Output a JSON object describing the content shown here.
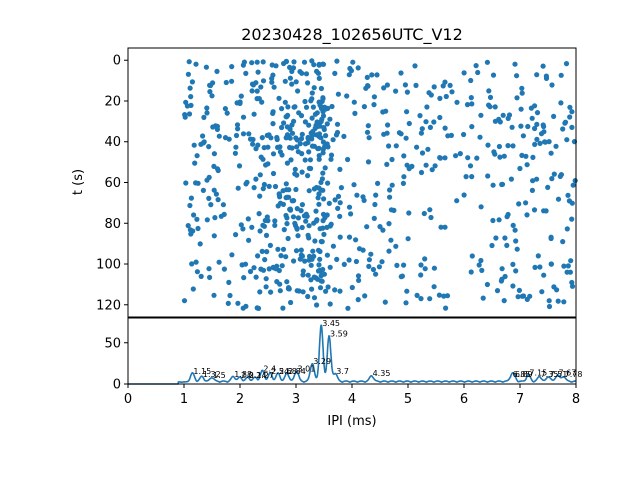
{
  "chart_data": [
    {
      "type": "scatter",
      "title": "20230428_102656UTC_V12",
      "xlabel": "",
      "ylabel": "t (s)",
      "xlim": [
        0,
        8
      ],
      "ylim": [
        126,
        -6
      ],
      "y_inverted": true,
      "yticks": [
        "0",
        "20",
        "40",
        "60",
        "80",
        "100",
        "120"
      ],
      "marker_color": "#1f77b4",
      "bands": [
        {
          "t": 2,
          "density": 0.7
        },
        {
          "t": 7,
          "density": 0.6
        },
        {
          "t": 12,
          "density": 0.7
        },
        {
          "t": 17,
          "density": 0.6
        },
        {
          "t": 22,
          "density": 0.9
        },
        {
          "t": 27,
          "density": 0.8
        },
        {
          "t": 32,
          "density": 1.0
        },
        {
          "t": 37,
          "density": 1.2
        },
        {
          "t": 42,
          "density": 0.9
        },
        {
          "t": 47,
          "density": 0.8
        },
        {
          "t": 52,
          "density": 0.5
        },
        {
          "t": 57,
          "density": 0.5
        },
        {
          "t": 62,
          "density": 0.8
        },
        {
          "t": 67,
          "density": 0.6
        },
        {
          "t": 72,
          "density": 0.6
        },
        {
          "t": 77,
          "density": 0.8
        },
        {
          "t": 82,
          "density": 0.7
        },
        {
          "t": 87,
          "density": 0.5
        },
        {
          "t": 92,
          "density": 0.4
        },
        {
          "t": 97,
          "density": 0.6
        },
        {
          "t": 102,
          "density": 1.0
        },
        {
          "t": 107,
          "density": 0.6
        },
        {
          "t": 112,
          "density": 0.6
        },
        {
          "t": 117,
          "density": 0.5
        },
        {
          "t": 120,
          "density": 0.3
        }
      ]
    },
    {
      "type": "line",
      "xlabel": "IPI (ms)",
      "ylabel": "",
      "xlim": [
        0,
        8
      ],
      "ylim": [
        0,
        80
      ],
      "xticks": [
        "0",
        "1",
        "2",
        "3",
        "4",
        "5",
        "6",
        "7",
        "8"
      ],
      "yticks": [
        "0",
        "50"
      ],
      "line_color": "#1f77b4",
      "peaks": [
        {
          "x": 1.15,
          "y": 10,
          "label": "1.15"
        },
        {
          "x": 1.32,
          "y": 6,
          "label": "1.32"
        },
        {
          "x": 1.5,
          "y": 5,
          "label": "1.5"
        },
        {
          "x": 1.88,
          "y": 6,
          "label": "1.88"
        },
        {
          "x": 2.0,
          "y": 5,
          "label": "2.0"
        },
        {
          "x": 2.14,
          "y": 5,
          "label": "2.14"
        },
        {
          "x": 2.27,
          "y": 5,
          "label": "2.27"
        },
        {
          "x": 2.4,
          "y": 13,
          "label": "2.4"
        },
        {
          "x": 2.54,
          "y": 10,
          "label": "2.54"
        },
        {
          "x": 2.68,
          "y": 10,
          "label": "2.68"
        },
        {
          "x": 2.84,
          "y": 10,
          "label": "2.84"
        },
        {
          "x": 3.01,
          "y": 13,
          "label": "3.01"
        },
        {
          "x": 3.29,
          "y": 22,
          "label": "3.29"
        },
        {
          "x": 3.45,
          "y": 68,
          "label": "3.45"
        },
        {
          "x": 3.59,
          "y": 55,
          "label": "3.59"
        },
        {
          "x": 3.7,
          "y": 10,
          "label": "3.7"
        },
        {
          "x": 4.35,
          "y": 7,
          "label": "4.35"
        },
        {
          "x": 6.85,
          "y": 6,
          "label": "6.85"
        },
        {
          "x": 6.89,
          "y": 6,
          "label": "6.89"
        },
        {
          "x": 7.15,
          "y": 8,
          "label": "7.15"
        },
        {
          "x": 7.35,
          "y": 6,
          "label": "7.35"
        },
        {
          "x": 7.51,
          "y": 6,
          "label": "7.51"
        },
        {
          "x": 7.67,
          "y": 8,
          "label": "7.67"
        },
        {
          "x": 7.78,
          "y": 6,
          "label": "7.78"
        }
      ]
    }
  ]
}
